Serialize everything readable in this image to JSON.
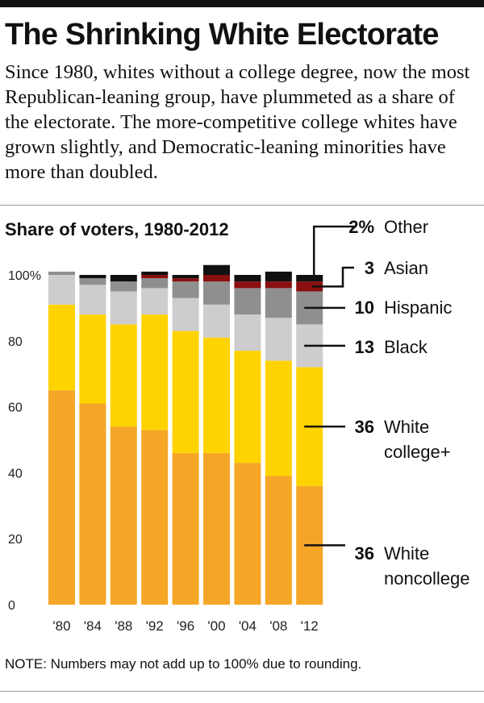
{
  "header": {
    "title": "The Shrinking White Electorate",
    "subtitle": "Since 1980, whites without a college degree, now the most Republican-leaning group, have plummeted as a share of the electorate. The more-competitive college whites have grown slightly, and Democratic-leaning minorities have more than doubled."
  },
  "note": "NOTE: Numbers may not add up to 100% due to rounding.",
  "chart_data": {
    "type": "bar",
    "stacked": true,
    "title": "Share of voters, 1980-2012",
    "categories": [
      "'80",
      "'84",
      "'88",
      "'92",
      "'96",
      "'00",
      "'04",
      "'08",
      "'12"
    ],
    "yticks": [
      "100%",
      "80",
      "60",
      "40",
      "20",
      "0"
    ],
    "ylim": [
      0,
      100
    ],
    "grid": false,
    "legend": "right, labels at 2012 bar",
    "series": [
      {
        "name": "White noncollege",
        "color": "#f5a626",
        "values": [
          65,
          61,
          54,
          53,
          46,
          46,
          43,
          39,
          36
        ]
      },
      {
        "name": "White college+",
        "color": "#ffd300",
        "values": [
          26,
          27,
          31,
          35,
          37,
          35,
          34,
          35,
          36
        ]
      },
      {
        "name": "Black",
        "color": "#cdcdcd",
        "values": [
          9,
          9,
          10,
          8,
          10,
          10,
          11,
          13,
          13
        ]
      },
      {
        "name": "Hispanic",
        "color": "#8f8f8f",
        "values": [
          1,
          2,
          3,
          3,
          5,
          7,
          8,
          9,
          10
        ]
      },
      {
        "name": "Asian",
        "color": "#8a0f0f",
        "values": [
          0,
          0,
          0,
          1,
          1,
          2,
          2,
          2,
          3
        ]
      },
      {
        "name": "Other",
        "color": "#111111",
        "values": [
          0,
          1,
          2,
          1,
          1,
          3,
          2,
          3,
          2
        ]
      }
    ],
    "legend_labels": [
      {
        "series": "Other",
        "value": "2%",
        "lines": [
          "Other"
        ]
      },
      {
        "series": "Asian",
        "value": "3",
        "lines": [
          "Asian"
        ]
      },
      {
        "series": "Hispanic",
        "value": "10",
        "lines": [
          "Hispanic"
        ]
      },
      {
        "series": "Black",
        "value": "13",
        "lines": [
          "Black"
        ]
      },
      {
        "series": "White college+",
        "value": "36",
        "lines": [
          "White",
          "college+"
        ]
      },
      {
        "series": "White noncollege",
        "value": "36",
        "lines": [
          "White",
          "noncollege"
        ]
      }
    ]
  }
}
